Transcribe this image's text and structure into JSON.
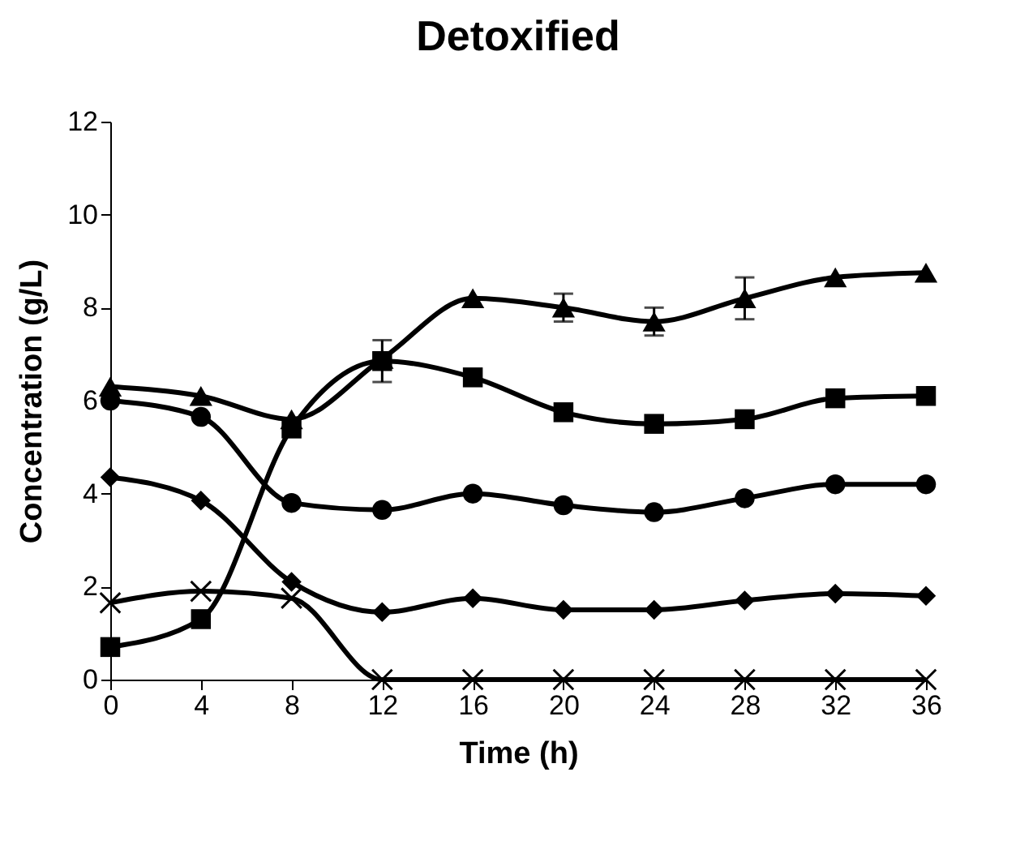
{
  "chart_data": {
    "type": "line",
    "title": "Detoxified",
    "xlabel": "Time (h)",
    "ylabel": "Concentration (g/L)",
    "x": [
      0,
      4,
      8,
      12,
      16,
      20,
      24,
      28,
      32,
      36
    ],
    "xlim": [
      0,
      36
    ],
    "xticks": [
      0,
      4,
      8,
      12,
      16,
      20,
      24,
      28,
      32,
      36
    ],
    "ylim": [
      0,
      12
    ],
    "yticks": [
      0,
      2,
      4,
      6,
      8,
      10,
      12
    ],
    "grid": false,
    "line_style": "solid",
    "series": [
      {
        "color": "#000000",
        "marker": "triangle",
        "values": [
          6.3,
          6.1,
          5.6,
          6.9,
          8.2,
          8.0,
          7.7,
          8.2,
          8.65,
          8.75
        ],
        "errors": [
          null,
          null,
          null,
          null,
          null,
          0.3,
          0.3,
          0.45,
          null,
          null
        ]
      },
      {
        "color": "#000000",
        "marker": "square",
        "values": [
          0.7,
          1.3,
          5.4,
          6.85,
          6.5,
          5.75,
          5.5,
          5.6,
          6.05,
          6.1
        ],
        "errors": [
          null,
          null,
          null,
          0.45,
          null,
          null,
          null,
          null,
          null,
          null
        ]
      },
      {
        "color": "#000000",
        "marker": "circle",
        "values": [
          6.0,
          5.65,
          3.8,
          3.65,
          4.0,
          3.75,
          3.6,
          3.9,
          4.2,
          4.2
        ]
      },
      {
        "color": "#000000",
        "marker": "diamond",
        "values": [
          4.35,
          3.85,
          2.1,
          1.45,
          1.75,
          1.5,
          1.5,
          1.7,
          1.85,
          1.8
        ]
      },
      {
        "color": "#000000",
        "marker": "cross",
        "values": [
          1.65,
          1.9,
          1.75,
          0,
          0,
          0,
          0,
          0,
          0,
          0
        ]
      }
    ]
  }
}
